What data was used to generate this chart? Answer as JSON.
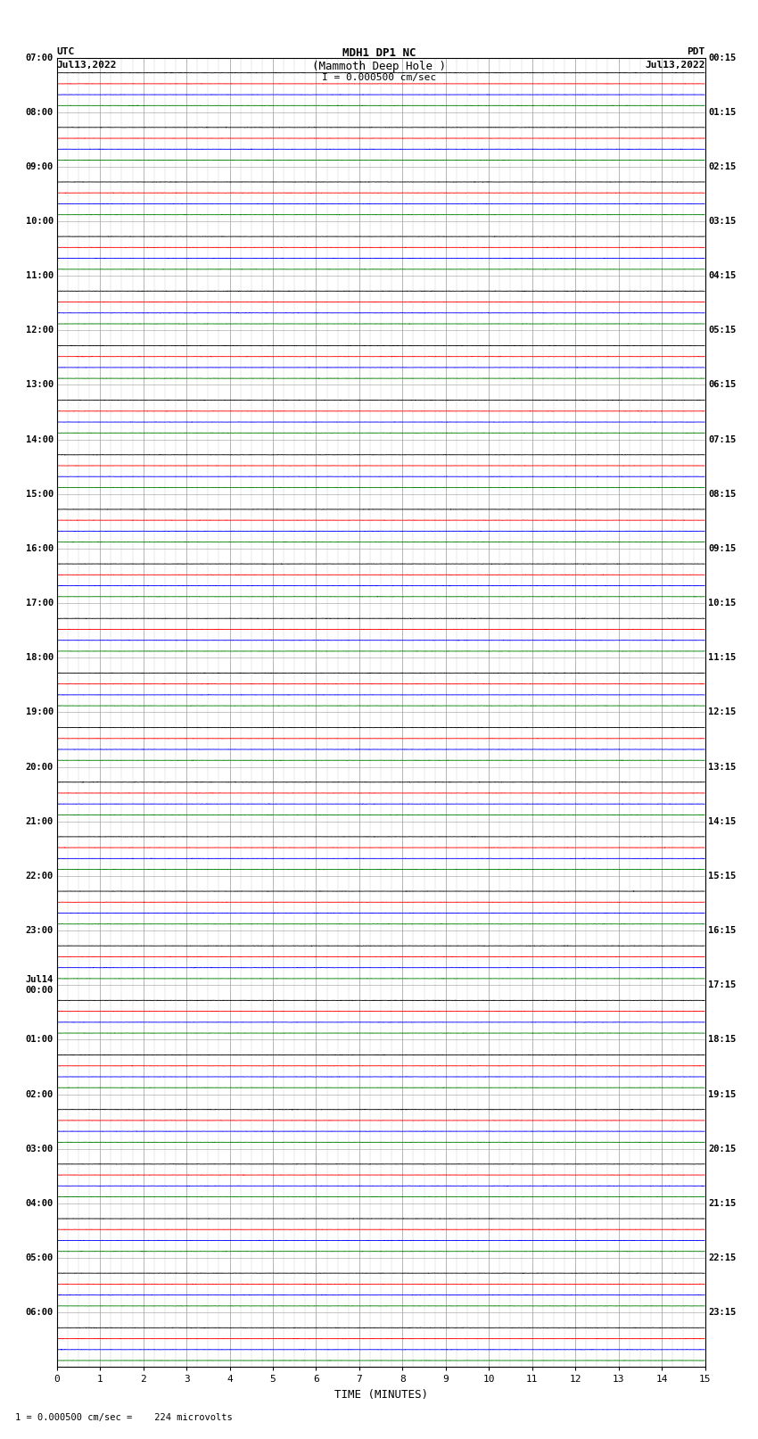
{
  "title_line1": "MDH1 DP1 NC",
  "title_line2": "(Mammoth Deep Hole )",
  "scale_text": "I = 0.000500 cm/sec",
  "left_label": "UTC",
  "right_label": "PDT",
  "left_date": "Jul13,2022",
  "right_date": "Jul13,2022",
  "bottom_label": "TIME (MINUTES)",
  "footer_text": "1 = 0.000500 cm/sec =    224 microvolts",
  "bg_color": "#ffffff",
  "utc_start_times": [
    "07:00",
    "08:00",
    "09:00",
    "10:00",
    "11:00",
    "12:00",
    "13:00",
    "14:00",
    "15:00",
    "16:00",
    "17:00",
    "18:00",
    "19:00",
    "20:00",
    "21:00",
    "22:00",
    "23:00",
    "Jul14\n00:00",
    "01:00",
    "02:00",
    "03:00",
    "04:00",
    "05:00",
    "06:00"
  ],
  "pdt_times": [
    "00:15",
    "01:15",
    "02:15",
    "03:15",
    "04:15",
    "05:15",
    "06:15",
    "07:15",
    "08:15",
    "09:15",
    "10:15",
    "11:15",
    "12:15",
    "13:15",
    "14:15",
    "15:15",
    "16:15",
    "17:15",
    "18:15",
    "19:15",
    "20:15",
    "21:15",
    "22:15",
    "23:15"
  ],
  "num_rows": 24,
  "minutes_per_row": 15,
  "trace_colors": [
    "#000000",
    "#ff0000",
    "#0000ff",
    "#008000"
  ],
  "grid_color": "#999999",
  "grid_minor_color": "#cccccc",
  "line_width": 0.6,
  "x_ticks": [
    0,
    1,
    2,
    3,
    4,
    5,
    6,
    7,
    8,
    9,
    10,
    11,
    12,
    13,
    14,
    15
  ]
}
